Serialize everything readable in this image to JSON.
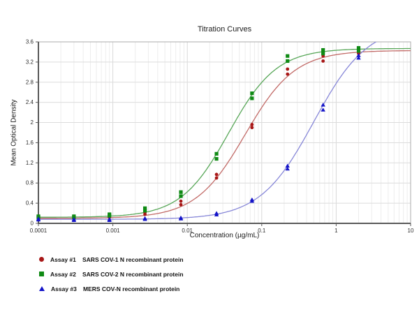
{
  "figure": {
    "title": "Titration Curves",
    "x_axis_label": "Concentration (µg/mL)",
    "y_axis_label": "Mean Optical Density"
  },
  "chart_data": {
    "type": "line",
    "title": "Titration Curves",
    "xlabel": "Concentration (µg/mL)",
    "ylabel": "Mean Optical Density",
    "x_scale": "log",
    "xlim": [
      0.0001,
      10
    ],
    "ylim": [
      0,
      3.6
    ],
    "grid": true,
    "minor_log_gridlines": true,
    "legend_position": "bottom-left",
    "x_ticks": [
      "0.0001",
      "0.001",
      "0.01",
      "0.1",
      "1",
      "10"
    ],
    "x_tick_values": [
      0.0001,
      0.001,
      0.01,
      0.1,
      1,
      10
    ],
    "y_ticks": [
      "3.6",
      "3.2",
      "2.8",
      "2.4",
      "2",
      "1.6",
      "1.2",
      "0.8",
      "0.4",
      "0"
    ],
    "y_tick_values": [
      3.6,
      3.2,
      2.8,
      2.4,
      2,
      1.6,
      1.2,
      0.8,
      0.4,
      0
    ],
    "concentrations": [
      0.0001,
      0.0003,
      0.0009,
      0.0027,
      0.0082,
      0.0247,
      0.074,
      0.222,
      0.667,
      2
    ],
    "series": [
      {
        "name": "assay-1",
        "legend_label": "Assay #1",
        "description": "SARS COV-1 N recombinant protein",
        "marker": "circle",
        "marker_color": "#a81717",
        "line_color": "#c26a67",
        "replicate_od": [
          [
            0.1,
            0.12
          ],
          [
            0.1,
            0.12
          ],
          [
            0.12,
            0.15
          ],
          [
            0.18,
            0.22
          ],
          [
            0.37,
            0.44
          ],
          [
            0.9,
            0.97
          ],
          [
            1.9,
            1.96
          ],
          [
            2.96,
            3.06
          ],
          [
            3.22,
            3.32
          ],
          [
            3.37,
            3.42
          ]
        ],
        "fit_4pl": {
          "bottom": 0.1,
          "top": 3.43,
          "ec50": 0.06,
          "hill": 1.3
        }
      },
      {
        "name": "assay-2",
        "legend_label": "Assay #2",
        "description": "SARS COV-2 N recombinant protein",
        "marker": "square",
        "marker_color": "#0f8a14",
        "line_color": "#58a758",
        "replicate_od": [
          [
            0.12,
            0.14
          ],
          [
            0.12,
            0.14
          ],
          [
            0.15,
            0.18
          ],
          [
            0.25,
            0.3
          ],
          [
            0.54,
            0.62
          ],
          [
            1.28,
            1.38
          ],
          [
            2.48,
            2.58
          ],
          [
            3.22,
            3.32
          ],
          [
            3.37,
            3.44
          ],
          [
            3.42,
            3.48
          ]
        ],
        "fit_4pl": {
          "bottom": 0.12,
          "top": 3.47,
          "ec50": 0.036,
          "hill": 1.35
        }
      },
      {
        "name": "assay-3",
        "legend_label": "Assay #3",
        "description": "MERS COV-N recombinant protein",
        "marker": "triangle",
        "marker_color": "#1414c8",
        "line_color": "#8787d8",
        "replicate_od": [
          [
            0.07,
            0.09
          ],
          [
            0.06,
            0.08
          ],
          [
            0.06,
            0.08
          ],
          [
            0.08,
            0.1
          ],
          [
            0.09,
            0.11
          ],
          [
            0.17,
            0.2
          ],
          [
            0.44,
            0.47
          ],
          [
            1.08,
            1.14
          ],
          [
            2.25,
            2.35
          ],
          [
            3.28,
            3.33
          ]
        ],
        "fit_4pl": {
          "bottom": 0.08,
          "top": 3.95,
          "ec50": 0.5,
          "hill": 1.2
        }
      }
    ],
    "style_colors": {
      "h_gridline": "#dcdcdc",
      "v_major_gridline": "#d9d9d9",
      "v_minor_gridline": "#ededed",
      "frame": "#ababab",
      "axis": "#5a5a5a",
      "tick_label": "#2e2e2e"
    }
  }
}
